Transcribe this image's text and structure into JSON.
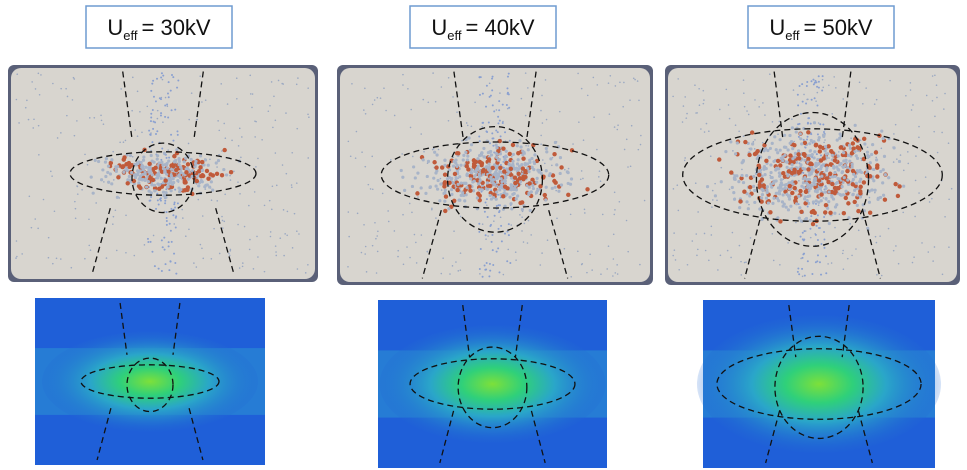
{
  "panels": [
    {
      "label": {
        "symbol": "U",
        "subscript": "eff",
        "text": "= 30kV"
      }
    },
    {
      "label": {
        "symbol": "U",
        "subscript": "eff",
        "text": "= 40kV"
      }
    },
    {
      "label": {
        "symbol": "U",
        "subscript": "eff",
        "text": "= 50kV"
      }
    }
  ]
}
